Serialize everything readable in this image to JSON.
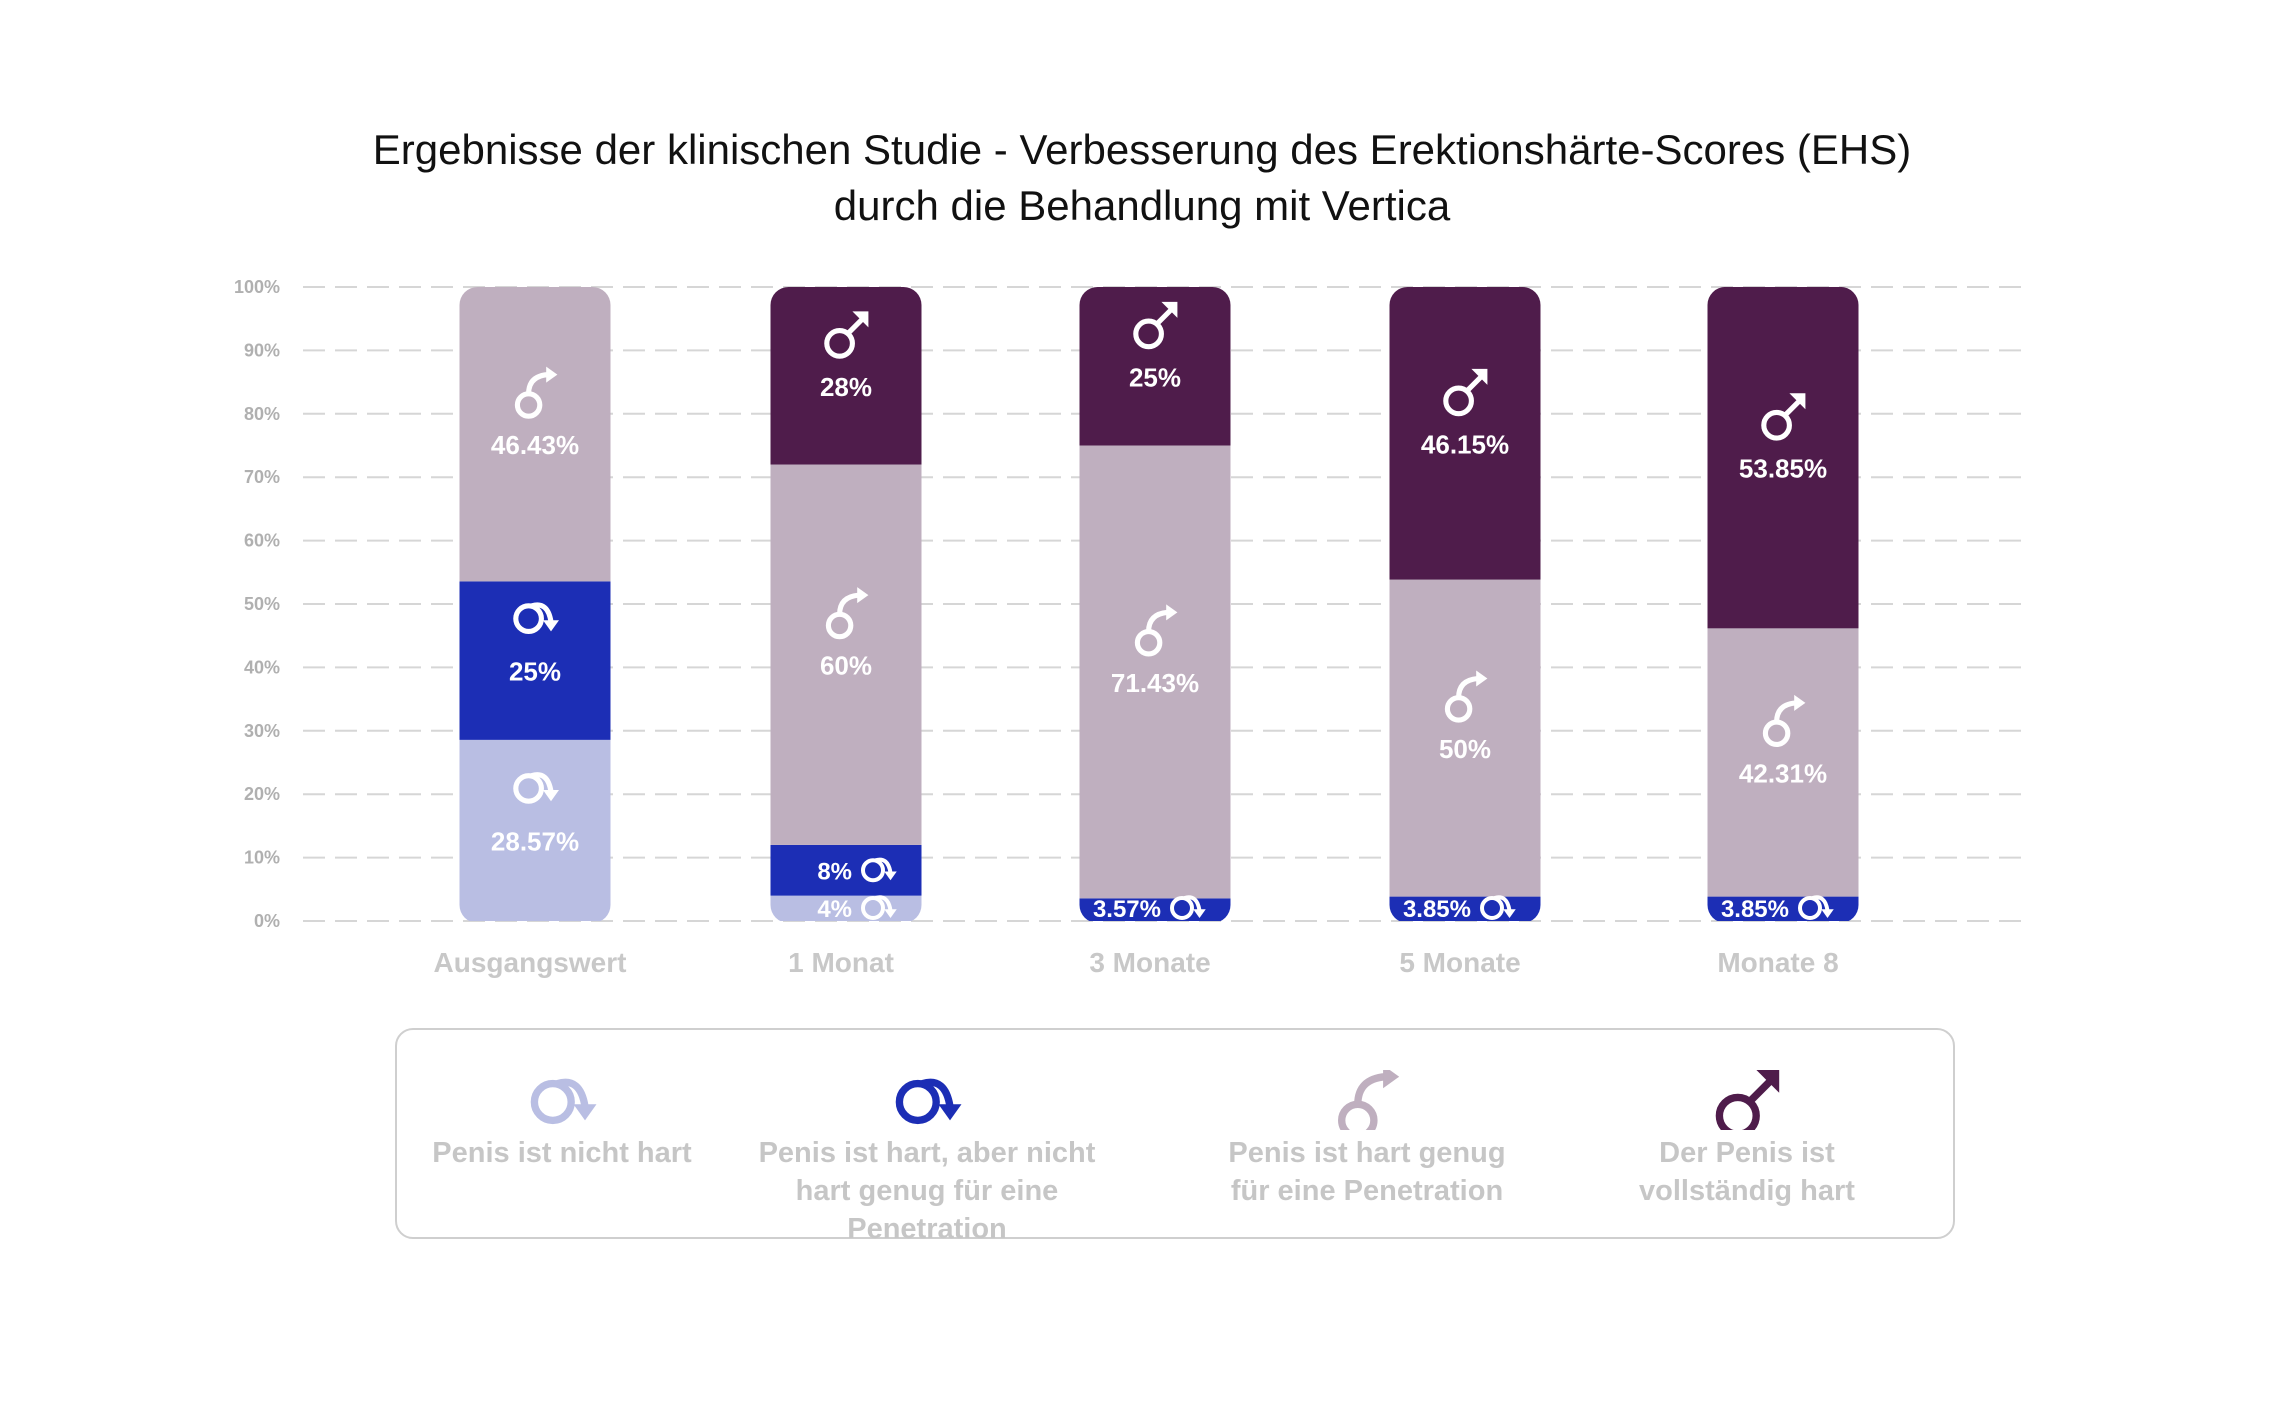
{
  "title": {
    "line1": "Ergebnisse der klinischen Studie - Verbesserung des Erektionshärte-Scores (EHS)",
    "line2": "durch die Behandlung mit Vertica"
  },
  "chart_data": {
    "type": "bar",
    "stacked": true,
    "title": "Ergebnisse der klinischen Studie - Verbesserung des Erektionshärte-Scores (EHS) durch die Behandlung mit Vertica",
    "xlabel": "",
    "ylabel": "",
    "ylim": [
      0,
      100
    ],
    "yticks": [
      "0%",
      "10%",
      "20%",
      "30%",
      "40%",
      "50%",
      "60%",
      "70%",
      "80%",
      "90%",
      "100%"
    ],
    "grid": true,
    "legend_position": "bottom",
    "categories": [
      "Ausgangswert",
      "1 Monat",
      "3 Monate",
      "5 Monate",
      "Monate 8"
    ],
    "series": [
      {
        "name": "Penis ist nicht hart",
        "color": "#b9bee3",
        "icon": "not-hard-icon",
        "values": [
          28.57,
          4,
          0,
          0,
          0
        ],
        "labels": [
          "28.57%",
          "4%",
          "",
          "",
          ""
        ]
      },
      {
        "name": "Penis ist hart, aber nicht hart genug für eine Penetration",
        "color": "#1c2eb5",
        "icon": "hard-not-enough-icon",
        "values": [
          25,
          8,
          3.57,
          3.85,
          3.85
        ],
        "labels": [
          "25%",
          "8%",
          "3.57%",
          "3.85%",
          "3.85%"
        ]
      },
      {
        "name": "Penis ist hart genug für eine Penetration",
        "color": "#bfafbf",
        "icon": "hard-enough-icon",
        "values": [
          46.43,
          60,
          71.43,
          50,
          42.31
        ],
        "labels": [
          "46.43%",
          "60%",
          "71.43%",
          "50%",
          "42.31%"
        ]
      },
      {
        "name": "Der Penis ist vollständig hart",
        "color": "#4f1c4b",
        "icon": "fully-hard-icon",
        "values": [
          0,
          28,
          25,
          46.15,
          53.85
        ],
        "labels": [
          "",
          "28%",
          "25%",
          "46.15%",
          "53.85%"
        ]
      }
    ]
  },
  "legend": [
    {
      "label": "Penis ist nicht hart",
      "color": "#b9bee3",
      "icon": "not-hard-icon"
    },
    {
      "label": "Penis ist hart, aber nicht hart genug für eine Penetration",
      "color": "#1c2eb5",
      "icon": "hard-not-enough-icon"
    },
    {
      "label": "Penis ist hart genug für eine Penetration",
      "color": "#bfafbf",
      "icon": "hard-enough-icon"
    },
    {
      "label": "Der Penis ist vollständig hart",
      "color": "#4f1c4b",
      "icon": "fully-hard-icon"
    }
  ]
}
